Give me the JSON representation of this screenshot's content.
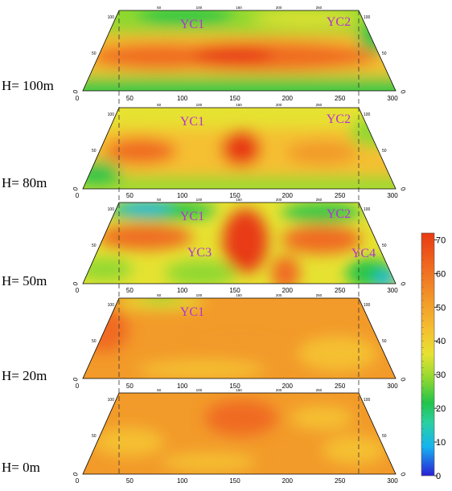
{
  "layers": [
    {
      "label": "H= 100m",
      "markers": [
        "YC1",
        "YC2"
      ]
    },
    {
      "label": "H= 80m",
      "markers": [
        "YC1",
        "YC2"
      ]
    },
    {
      "label": "H= 50m",
      "markers": [
        "YC1",
        "YC2",
        "YC3",
        "YC4"
      ]
    },
    {
      "label": "H= 20m",
      "markers": [
        "YC1"
      ]
    },
    {
      "label": "H= 0m",
      "markers": []
    }
  ],
  "x_ticks": [
    "0",
    "50",
    "100",
    "150",
    "200",
    "250",
    "300"
  ],
  "y_ticks": [
    "0",
    "50",
    "100"
  ],
  "colorbar": {
    "ticks": [
      "70",
      "60",
      "50",
      "40",
      "30",
      "20",
      "10",
      "0"
    ],
    "min": 0,
    "max": 72,
    "stops": [
      "#2a1fd6",
      "#15b4f0",
      "#2bd0a0",
      "#22c44a",
      "#8fd830",
      "#e6e232",
      "#f5c030",
      "#f29a2a",
      "#f06a20",
      "#e83a12"
    ]
  },
  "colors": {
    "marker": "#b431d6",
    "grid": "#000000",
    "dashed": "#333333"
  }
}
